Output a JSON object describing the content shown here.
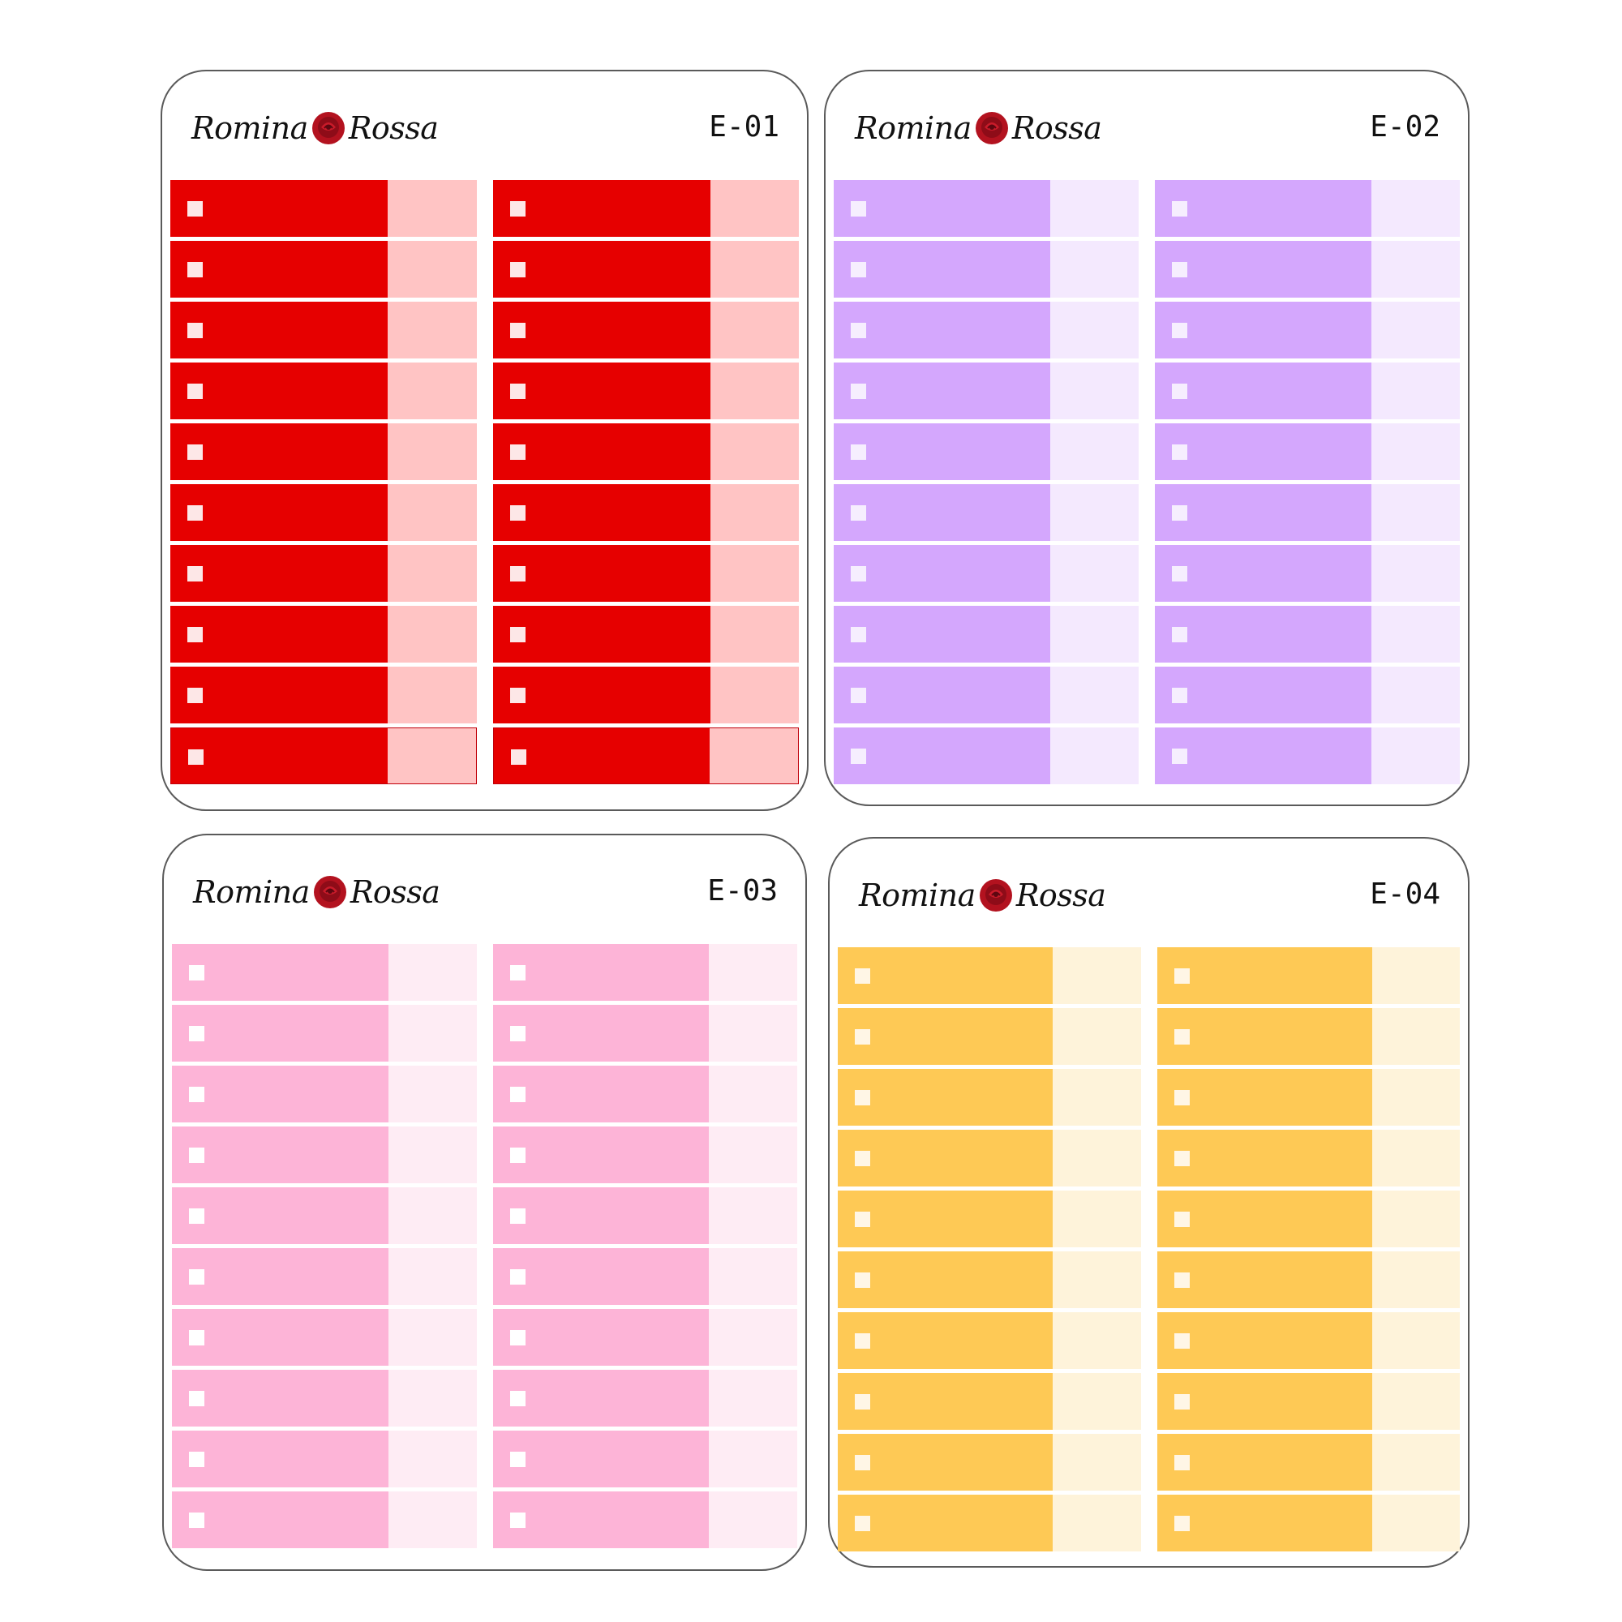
{
  "brand": {
    "name_first": "Romina",
    "name_last": "Rossa",
    "rose_icon": "rose-icon"
  },
  "sheets": [
    {
      "code": "E-01",
      "main_color": "#e60000",
      "side_color": "#ffc4c4",
      "box_color": "#fde7e7",
      "rows_per_column": 10,
      "columns": 2
    },
    {
      "code": "E-02",
      "main_color": "#d4a7fd",
      "side_color": "#f4e9fe",
      "box_color": "#f6eefe",
      "rows_per_column": 10,
      "columns": 2
    },
    {
      "code": "E-03",
      "main_color": "#fdb4d7",
      "side_color": "#feecf4",
      "box_color": "#ffffff",
      "rows_per_column": 10,
      "columns": 2
    },
    {
      "code": "E-04",
      "main_color": "#fec955",
      "side_color": "#fef3da",
      "box_color": "#fff6e6",
      "rows_per_column": 10,
      "columns": 2
    }
  ]
}
